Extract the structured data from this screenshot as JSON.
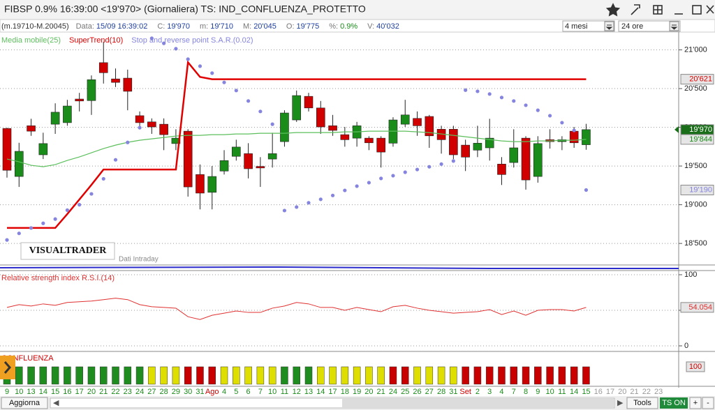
{
  "window": {
    "title": "FIBSP 0.9% 16:39:00 <19'970> (Giornaliera) TS: IND_CONFLUENZA_PROTETTO"
  },
  "info_bar": {
    "range": "(m.19710-M.20045)",
    "fields": [
      {
        "label": "Data:",
        "value": "15/09 16:39:02"
      },
      {
        "label": "C:",
        "value": "19'970"
      },
      {
        "label": "m:",
        "value": "19'710"
      },
      {
        "label": "M:",
        "value": "20'045"
      },
      {
        "label": "O:",
        "value": "19'775"
      },
      {
        "label": "%:",
        "value": "0.9%"
      },
      {
        "label": "V:",
        "value": "40'032"
      }
    ],
    "period": "4 mesi",
    "session": "24 ore"
  },
  "watermark": {
    "brand": "VISUALTRADER",
    "note": "Dati Intraday"
  },
  "time_axis": {
    "labels": [
      "9",
      "10",
      "13",
      "14",
      "15",
      "16",
      "17",
      "20",
      "21",
      "22",
      "23",
      "24",
      "27",
      "28",
      "29",
      "30",
      "31",
      "Ago",
      "4",
      "5",
      "6",
      "7",
      "10",
      "11",
      "12",
      "13",
      "14",
      "17",
      "18",
      "19",
      "20",
      "21",
      "24",
      "25",
      "26",
      "27",
      "28",
      "31",
      "Set",
      "2",
      "3",
      "4",
      "7",
      "8",
      "9",
      "10",
      "11",
      "14",
      "15",
      "16",
      "17",
      "20",
      "21",
      "22",
      "23"
    ]
  },
  "chart_data": [
    {
      "type": "candlestick",
      "up_color": "#1a8c1a",
      "down_color": "#d00000",
      "close_label": "19'970",
      "open": [
        19985,
        19365,
        20020,
        19645,
        20040,
        20060,
        20365,
        20345,
        20835,
        20625,
        20635,
        20150,
        20070,
        20040,
        19790,
        19950,
        19390,
        19160,
        19435,
        19625,
        19660,
        19495,
        19590,
        19815,
        20095,
        20400,
        20250,
        20020,
        19905,
        19860,
        19860,
        19860,
        19795,
        20040,
        20115,
        20140,
        19975,
        19975,
        19770,
        19705,
        19735,
        19525,
        19545,
        19860,
        19365,
        19840,
        19815,
        19950,
        19775
      ],
      "high": [
        19995,
        19800,
        20110,
        19930,
        20310,
        20355,
        20445,
        20670,
        21105,
        20760,
        20745,
        20205,
        20115,
        20115,
        19975,
        19975,
        19520,
        19500,
        19705,
        19840,
        19795,
        19615,
        19930,
        20220,
        20475,
        20445,
        20340,
        20160,
        20005,
        20070,
        19885,
        19885,
        20130,
        20355,
        20205,
        20160,
        20020,
        20020,
        19840,
        20020,
        20110,
        19615,
        19975,
        19885,
        19885,
        19975,
        19885,
        20005,
        20045
      ],
      "low": [
        19350,
        19230,
        19890,
        19590,
        19915,
        20020,
        20205,
        20160,
        20565,
        20520,
        20220,
        19975,
        19915,
        19705,
        19705,
        19105,
        18940,
        18940,
        19390,
        19570,
        19340,
        19230,
        19480,
        19750,
        20070,
        20205,
        19915,
        19890,
        19750,
        19750,
        19705,
        19480,
        19750,
        20005,
        19890,
        19735,
        19660,
        19590,
        19435,
        19615,
        19570,
        19255,
        19480,
        19195,
        19285,
        19725,
        19705,
        19735,
        19710
      ],
      "close": [
        19445,
        19690,
        19950,
        19790,
        20195,
        20275,
        20340,
        20615,
        20705,
        20580,
        20465,
        20060,
        20005,
        19905,
        19860,
        19230,
        19150,
        19365,
        19570,
        19745,
        19465,
        19475,
        19660,
        20185,
        20410,
        20250,
        20005,
        19960,
        19840,
        20020,
        19800,
        19680,
        20095,
        20160,
        20020,
        19890,
        19840,
        19645,
        19615,
        19795,
        19860,
        19390,
        19735,
        19320,
        19790,
        19815,
        19840,
        19800,
        19970
      ],
      "ylim": [
        18240,
        21230
      ],
      "yticks": [
        {
          "value": 18500,
          "label": "18'500"
        },
        {
          "value": 19000,
          "label": "19'000"
        },
        {
          "value": 19500,
          "label": "19'500"
        },
        {
          "value": 20000,
          "label": "20'000"
        },
        {
          "value": 20500,
          "label": "20'500"
        },
        {
          "value": 21000,
          "label": "21'000"
        }
      ],
      "grid": true,
      "series": [
        {
          "name": "Media mobile(25)",
          "color": "#5cbf5c",
          "style": "line",
          "last_label": "19'844",
          "values": [
            19590,
            19554,
            19509,
            19491,
            19518,
            19572,
            19617,
            19671,
            19725,
            19770,
            19806,
            19833,
            19851,
            19869,
            19887,
            19896,
            19896,
            19905,
            19905,
            19914,
            19914,
            19923,
            19923,
            19923,
            19932,
            19932,
            19932,
            19932,
            19941,
            19941,
            19950,
            19950,
            19950,
            19950,
            19941,
            19932,
            19914,
            19896,
            19878,
            19860,
            19842,
            19824,
            19815,
            19815,
            19824,
            19824,
            19833,
            19833,
            19844
          ]
        },
        {
          "name": "SuperTrend(10)",
          "color": "#e00000",
          "style": "thick",
          "last_label": "20'621",
          "values": [
            18700,
            18700,
            18700,
            18700,
            18700,
            18880,
            19068,
            19257,
            19455,
            19455,
            19455,
            19455,
            19455,
            19455,
            19455,
            20840,
            20650,
            20621,
            20621,
            20621,
            20621,
            20621,
            20621,
            20621,
            20621,
            20621,
            20621,
            20621,
            20621,
            20621,
            20621,
            20621,
            20621,
            20621,
            20621,
            20621,
            20621,
            20621,
            20621,
            20621,
            20621,
            20621,
            20621,
            20621,
            20621,
            20621,
            20621,
            20621,
            20621
          ]
        },
        {
          "name": "Stop and reverse point S.A.R.(0.02)",
          "color": "#8585e0",
          "style": "dots",
          "last_label": "19'190",
          "values": [
            18545,
            18630,
            18700,
            18760,
            18815,
            18930,
            19000,
            19140,
            19335,
            19580,
            19805,
            19995,
            21150,
            21085,
            21015,
            20880,
            20790,
            20700,
            20580,
            20475,
            20340,
            20205,
            20040,
            18925,
            18970,
            19025,
            19070,
            19120,
            19185,
            19240,
            19285,
            19340,
            19375,
            19420,
            19455,
            19490,
            19525,
            19565,
            20480,
            20465,
            20430,
            20385,
            20340,
            20285,
            20220,
            20150,
            20060,
            19960,
            19190
          ]
        }
      ]
    },
    {
      "type": "line",
      "title": "Relative strength index R.S.I.(14)",
      "color": "#e03030",
      "last_label": "54.054",
      "ylim": [
        0,
        100
      ],
      "yticks": [
        0,
        50,
        100
      ],
      "grid": true,
      "values": [
        54,
        58,
        56,
        59,
        57,
        61,
        62,
        63,
        65,
        67,
        65,
        58,
        55,
        54,
        53,
        41,
        37,
        43,
        46,
        49,
        47,
        47,
        53,
        56,
        61,
        59,
        54,
        54,
        50,
        54,
        51,
        48,
        55,
        57,
        53,
        50,
        48,
        46,
        47,
        48,
        51,
        44,
        49,
        43,
        50,
        51,
        51,
        49,
        54.054
      ]
    },
    {
      "type": "signal",
      "title": "CONFLUENZA",
      "value_label": "100",
      "colors": [
        "#1e8c1e",
        "#1e8c1e",
        "#1e8c1e",
        "#1e8c1e",
        "#1e8c1e",
        "#1e8c1e",
        "#1e8c1e",
        "#1e8c1e",
        "#1e8c1e",
        "#1e8c1e",
        "#1e8c1e",
        "#1e8c1e",
        "#dede00",
        "#dede00",
        "#dede00",
        "#c80000",
        "#c80000",
        "#c80000",
        "#dede00",
        "#dede00",
        "#dede00",
        "#dede00",
        "#dede00",
        "#1e8c1e",
        "#1e8c1e",
        "#1e8c1e",
        "#dede00",
        "#dede00",
        "#dede00",
        "#dede00",
        "#dede00",
        "#dede00",
        "#c80000",
        "#c80000",
        "#dede00",
        "#dede00",
        "#dede00",
        "#dede00",
        "#c80000",
        "#c80000",
        "#c80000",
        "#c80000",
        "#c80000",
        "#c80000",
        "#c80000",
        "#c80000",
        "#c80000",
        "#c80000",
        "#c80000"
      ]
    }
  ],
  "footer": {
    "refresh": "Aggiorna",
    "tools": "Tools",
    "ts": "TS ON",
    "plus": "+",
    "minus": "-"
  }
}
